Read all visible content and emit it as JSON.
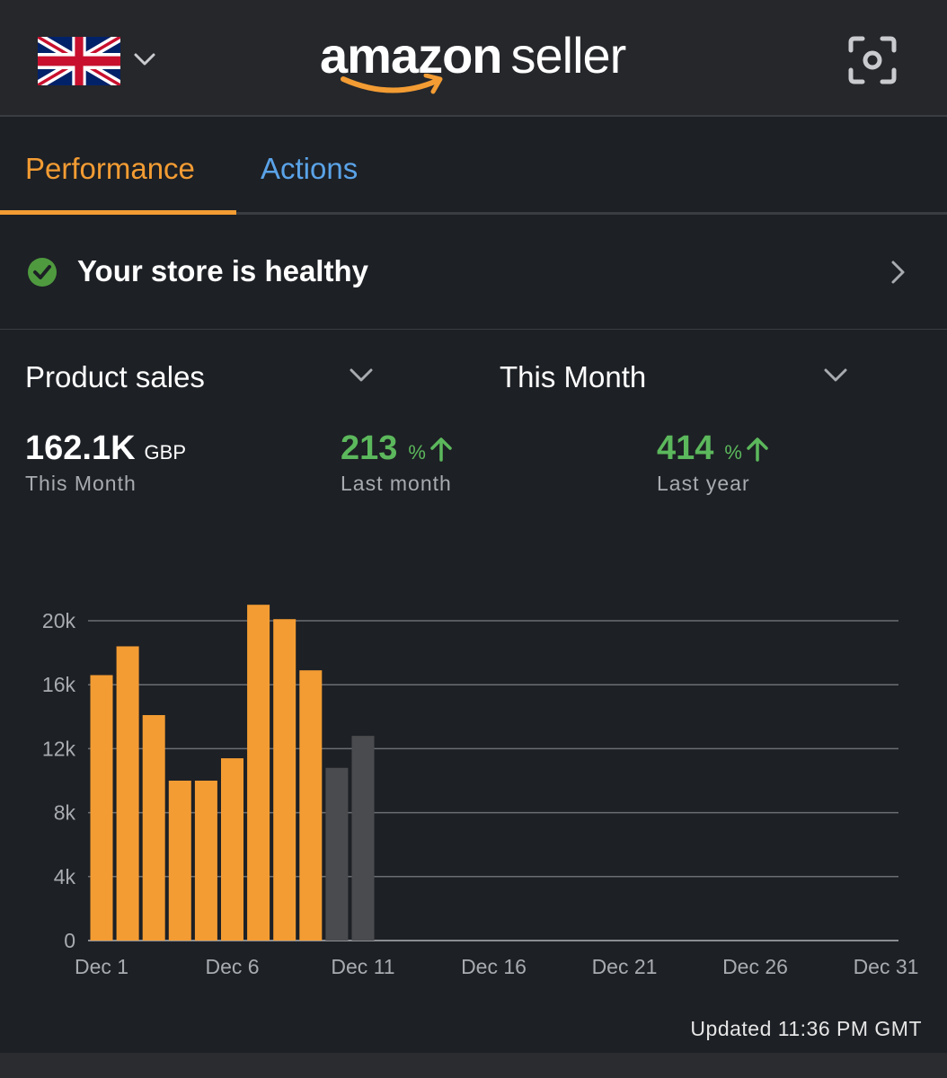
{
  "header": {
    "logo_primary": "amazon",
    "logo_secondary": "seller",
    "flag_icon": "uk-flag-icon",
    "scan_icon": "scan-icon",
    "colors": {
      "brand_orange": "#f39c33",
      "background": "#1d2025",
      "header_bg": "#25272b"
    }
  },
  "tabs": [
    {
      "label": "Performance",
      "active": true
    },
    {
      "label": "Actions",
      "active": false
    }
  ],
  "health": {
    "text": "Your store is healthy",
    "status_color": "#5cb85c"
  },
  "selectors": {
    "metric": "Product sales",
    "period": "This Month"
  },
  "stats": {
    "main": {
      "value": "162.1K",
      "unit": "GBP",
      "label": "This Month"
    },
    "last_month": {
      "value": "213",
      "unit": "%",
      "label": "Last month",
      "trend": "up"
    },
    "last_year": {
      "value": "414",
      "unit": "%",
      "label": "Last year",
      "trend": "up"
    }
  },
  "chart_data": {
    "type": "bar",
    "x_tick_labels": [
      "Dec 1",
      "Dec 6",
      "Dec 11",
      "Dec 16",
      "Dec 21",
      "Dec 26",
      "Dec 31"
    ],
    "y_tick_labels": [
      "0",
      "4k",
      "8k",
      "12k",
      "16k",
      "20k"
    ],
    "ylim": [
      0,
      20000
    ],
    "grid": true,
    "categories": [
      "Dec 1",
      "Dec 2",
      "Dec 3",
      "Dec 4",
      "Dec 5",
      "Dec 6",
      "Dec 7",
      "Dec 8",
      "Dec 9",
      "Dec 10",
      "Dec 11"
    ],
    "series": [
      {
        "values": [
          16600,
          18400,
          14100,
          10000,
          10000,
          11400,
          21000,
          20100,
          16900,
          null,
          null
        ],
        "color": "#f39c33"
      },
      {
        "values": [
          null,
          null,
          null,
          null,
          null,
          null,
          null,
          null,
          null,
          10800,
          12800
        ],
        "color": "#4a4b4e"
      }
    ]
  },
  "footer": {
    "updated": "Updated 11:36 PM GMT"
  }
}
